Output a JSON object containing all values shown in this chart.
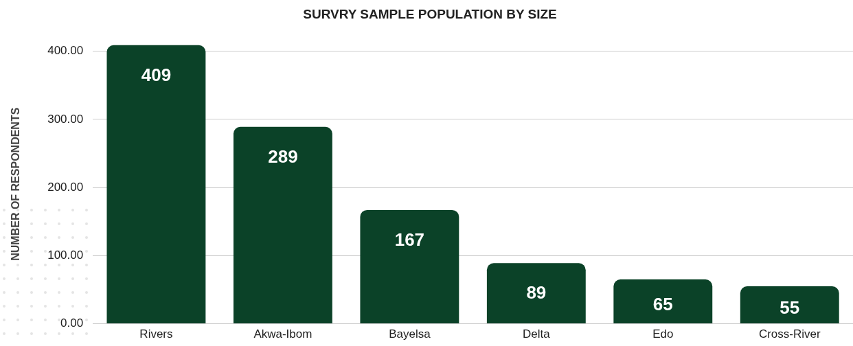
{
  "chart_data": {
    "type": "bar",
    "title": "SURVRY SAMPLE POPULATION BY SIZE",
    "ylabel": "NUMBER OF RESPONDENTS",
    "categories": [
      "Rivers",
      "Akwa-Ibom",
      "Bayelsa",
      "Delta",
      "Edo",
      "Cross-River"
    ],
    "values": [
      409,
      289,
      167,
      89,
      65,
      55
    ],
    "color": "#0b4228",
    "ylim": [
      0,
      410
    ],
    "yticks": [
      {
        "value": 0,
        "label": "0.00"
      },
      {
        "value": 100,
        "label": "100.00"
      },
      {
        "value": 200,
        "label": "200.00"
      },
      {
        "value": 300,
        "label": "300.00"
      },
      {
        "value": 400,
        "label": "400.00"
      }
    ],
    "grid": "y",
    "data_labels": true,
    "legend": false
  }
}
